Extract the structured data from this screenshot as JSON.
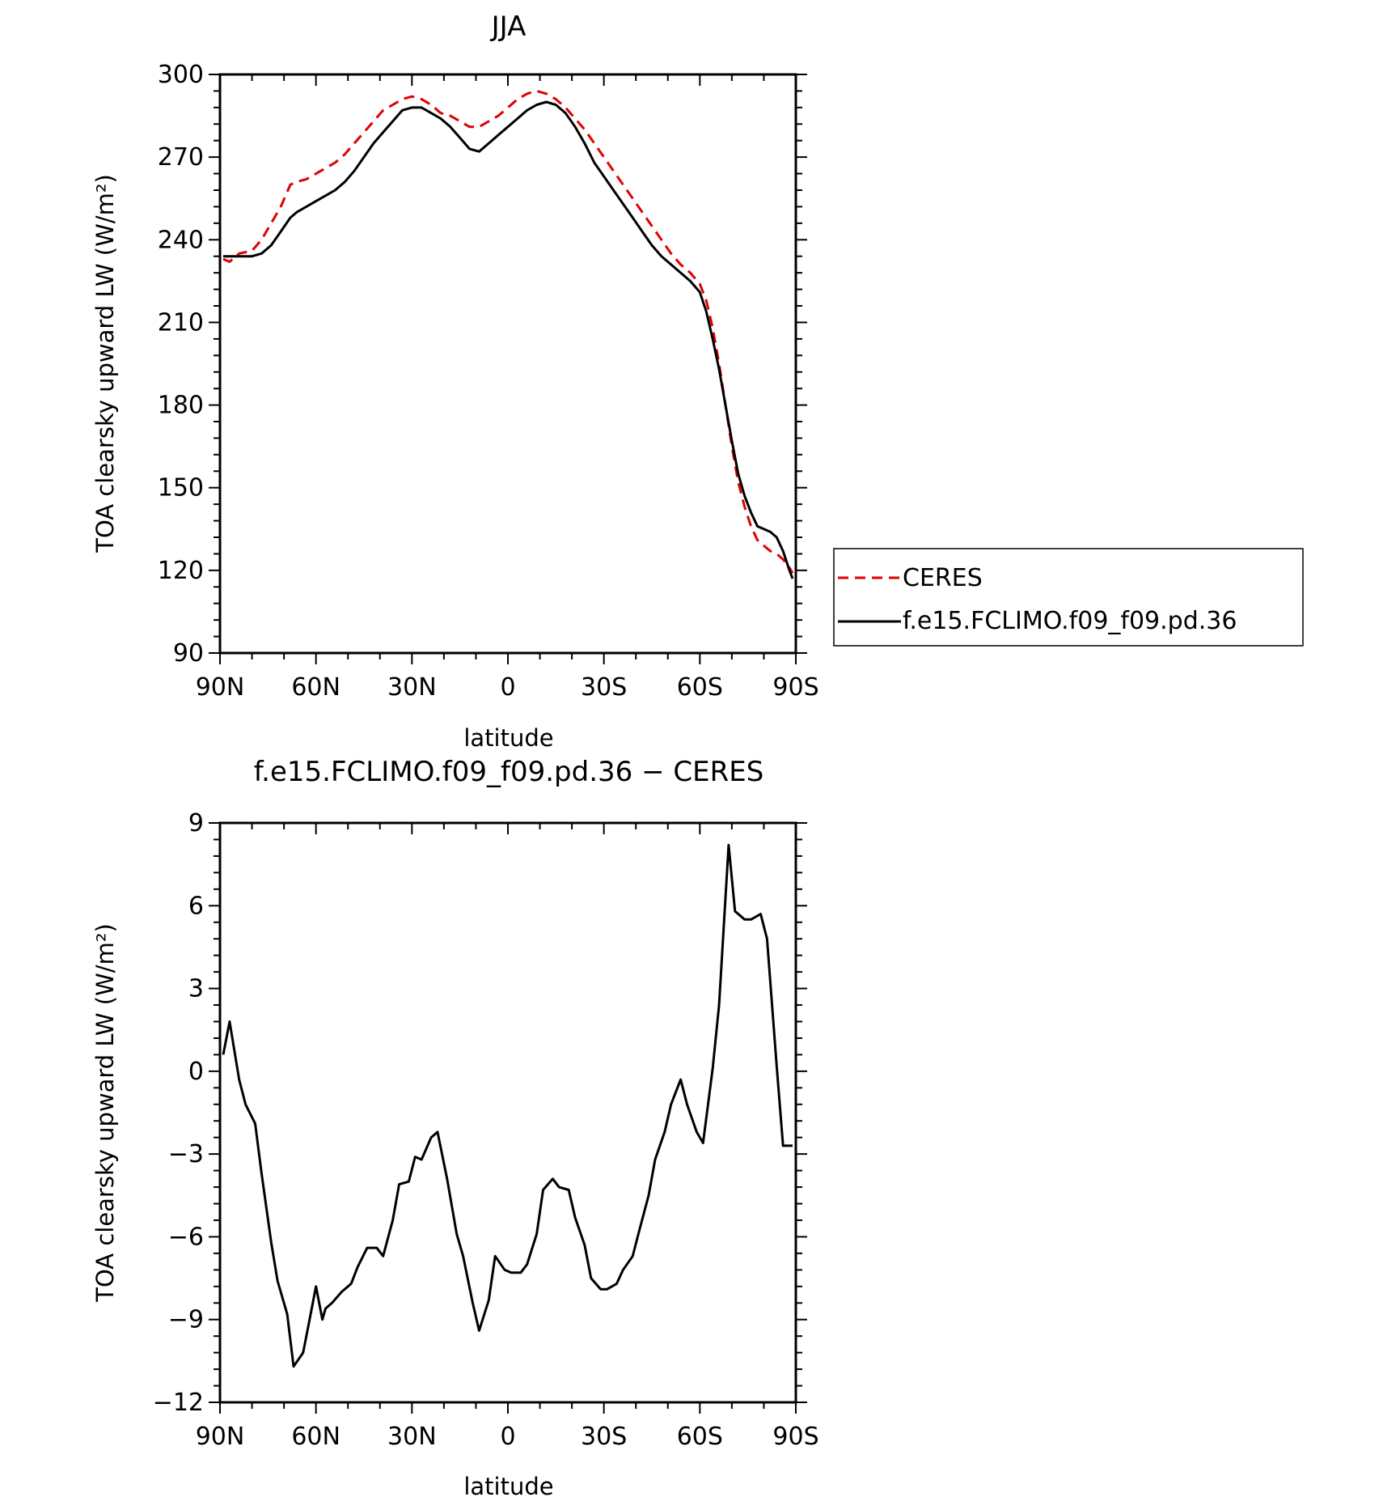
{
  "chart_data": [
    {
      "type": "line",
      "title": "JJA",
      "xlabel": "latitude",
      "ylabel": "TOA clearsky upward LW (W/m²)",
      "xlim": [
        90,
        -90
      ],
      "ylim": [
        90,
        300
      ],
      "xticks": [
        {
          "value": 90,
          "label": "90N"
        },
        {
          "value": 60,
          "label": "60N"
        },
        {
          "value": 30,
          "label": "30N"
        },
        {
          "value": 0,
          "label": "0"
        },
        {
          "value": -30,
          "label": "30S"
        },
        {
          "value": -60,
          "label": "60S"
        },
        {
          "value": -90,
          "label": "90S"
        }
      ],
      "yticks": [
        {
          "value": 90,
          "label": "90"
        },
        {
          "value": 120,
          "label": "120"
        },
        {
          "value": 150,
          "label": "150"
        },
        {
          "value": 180,
          "label": "180"
        },
        {
          "value": 210,
          "label": "210"
        },
        {
          "value": 240,
          "label": "240"
        },
        {
          "value": 270,
          "label": "270"
        },
        {
          "value": 300,
          "label": "300"
        }
      ],
      "legend": "right",
      "series": [
        {
          "name": "CERES",
          "color": "#e00000",
          "dash": "dashed",
          "x": [
            89,
            87,
            84,
            80,
            77,
            74,
            71,
            68,
            66,
            63,
            60,
            57,
            54,
            51,
            48,
            45,
            42,
            39,
            36,
            33,
            30,
            27,
            24,
            21,
            18,
            15,
            12,
            9,
            6,
            3,
            0,
            -3,
            -6,
            -9,
            -12,
            -15,
            -18,
            -21,
            -24,
            -27,
            -30,
            -33,
            -36,
            -39,
            -42,
            -45,
            -48,
            -51,
            -54,
            -57,
            -60,
            -62,
            -64,
            -66,
            -68,
            -70,
            -72,
            -74,
            -76,
            -78,
            -80,
            -82,
            -84,
            -86,
            -88,
            -89
          ],
          "y": [
            233,
            232,
            235,
            236,
            240,
            246,
            252,
            260,
            261,
            262,
            264,
            266,
            268,
            271,
            275,
            279,
            283,
            287,
            289,
            291,
            292,
            291,
            289,
            286,
            285,
            283,
            281,
            281,
            283,
            285,
            288,
            291,
            293,
            294,
            293,
            291,
            288,
            284,
            280,
            275,
            270,
            265,
            260,
            255,
            250,
            245,
            240,
            235,
            231,
            228,
            224,
            218,
            208,
            195,
            180,
            165,
            152,
            143,
            136,
            131,
            129,
            127,
            126,
            124,
            121,
            119
          ]
        },
        {
          "name": "f.e15.FCLIMO.f09_f09.pd.36",
          "color": "#000000",
          "dash": "solid",
          "x": [
            89,
            87,
            84,
            80,
            77,
            74,
            71,
            68,
            66,
            63,
            60,
            57,
            54,
            51,
            48,
            45,
            42,
            39,
            36,
            33,
            30,
            27,
            24,
            21,
            18,
            15,
            12,
            9,
            6,
            3,
            0,
            -3,
            -6,
            -9,
            -12,
            -15,
            -18,
            -21,
            -24,
            -27,
            -30,
            -33,
            -36,
            -39,
            -42,
            -45,
            -48,
            -51,
            -54,
            -57,
            -60,
            -62,
            -64,
            -66,
            -68,
            -70,
            -72,
            -74,
            -76,
            -78,
            -80,
            -82,
            -84,
            -86,
            -88,
            -89
          ],
          "y": [
            234,
            234,
            234,
            234,
            235,
            238,
            243,
            248,
            250,
            252,
            254,
            256,
            258,
            261,
            265,
            270,
            275,
            279,
            283,
            287,
            288,
            288,
            286,
            284,
            281,
            277,
            273,
            272,
            275,
            278,
            281,
            284,
            287,
            289,
            290,
            289,
            286,
            281,
            275,
            268,
            263,
            258,
            253,
            248,
            243,
            238,
            234,
            231,
            228,
            225,
            221,
            214,
            204,
            193,
            180,
            167,
            155,
            147,
            141,
            136,
            135,
            134,
            132,
            127,
            120,
            117
          ]
        }
      ]
    },
    {
      "type": "line",
      "title": "f.e15.FCLIMO.f09_f09.pd.36 − CERES",
      "xlabel": "latitude",
      "ylabel": "TOA clearsky upward LW (W/m²)",
      "xlim": [
        90,
        -90
      ],
      "ylim": [
        -12,
        9
      ],
      "xticks": [
        {
          "value": 90,
          "label": "90N"
        },
        {
          "value": 60,
          "label": "60N"
        },
        {
          "value": 30,
          "label": "30N"
        },
        {
          "value": 0,
          "label": "0"
        },
        {
          "value": -30,
          "label": "30S"
        },
        {
          "value": -60,
          "label": "60S"
        },
        {
          "value": -90,
          "label": "90S"
        }
      ],
      "yticks": [
        {
          "value": -12,
          "label": "−12"
        },
        {
          "value": -9,
          "label": "−9"
        },
        {
          "value": -6,
          "label": "−6"
        },
        {
          "value": -3,
          "label": "−3"
        },
        {
          "value": 0,
          "label": "0"
        },
        {
          "value": 3,
          "label": "3"
        },
        {
          "value": 6,
          "label": "6"
        },
        {
          "value": 9,
          "label": "9"
        }
      ],
      "series": [
        {
          "color": "#000000",
          "dash": "solid",
          "x": [
            89,
            87,
            84,
            82,
            79,
            77,
            74,
            72,
            69,
            67,
            64,
            62,
            60,
            58,
            57,
            55,
            52,
            49,
            47,
            44,
            41,
            39,
            36,
            34,
            31,
            29,
            27,
            24,
            22,
            19,
            16,
            14,
            11,
            9,
            6,
            4,
            1,
            -1,
            -4,
            -6,
            -9,
            -11,
            -14,
            -16,
            -19,
            -21,
            -24,
            -26,
            -29,
            -31,
            -34,
            -36,
            -39,
            -41,
            -44,
            -46,
            -49,
            -51,
            -54,
            -56,
            -59,
            -61,
            -64,
            -66,
            -69,
            -71,
            -74,
            -76,
            -79,
            -81,
            -84,
            -86,
            -88,
            -89
          ],
          "y": [
            0.6,
            1.8,
            -0.3,
            -1.2,
            -1.9,
            -3.7,
            -6.2,
            -7.6,
            -8.8,
            -10.7,
            -10.2,
            -9.0,
            -7.8,
            -9.0,
            -8.6,
            -8.4,
            -8.0,
            -7.7,
            -7.1,
            -6.4,
            -6.4,
            -6.7,
            -5.4,
            -4.1,
            -4.0,
            -3.1,
            -3.2,
            -2.4,
            -2.2,
            -3.9,
            -5.9,
            -6.7,
            -8.4,
            -9.4,
            -8.3,
            -6.7,
            -7.2,
            -7.3,
            -7.3,
            -7.0,
            -5.9,
            -4.3,
            -3.9,
            -4.2,
            -4.3,
            -5.3,
            -6.3,
            -7.5,
            -7.9,
            -7.9,
            -7.7,
            -7.2,
            -6.7,
            -5.8,
            -4.5,
            -3.2,
            -2.2,
            -1.2,
            -0.3,
            -1.2,
            -2.2,
            -2.6,
            0.1,
            2.4,
            8.2,
            5.8,
            5.5,
            5.5,
            5.7,
            4.8,
            0.2,
            -2.7,
            -2.7,
            -2.7
          ]
        }
      ]
    }
  ]
}
